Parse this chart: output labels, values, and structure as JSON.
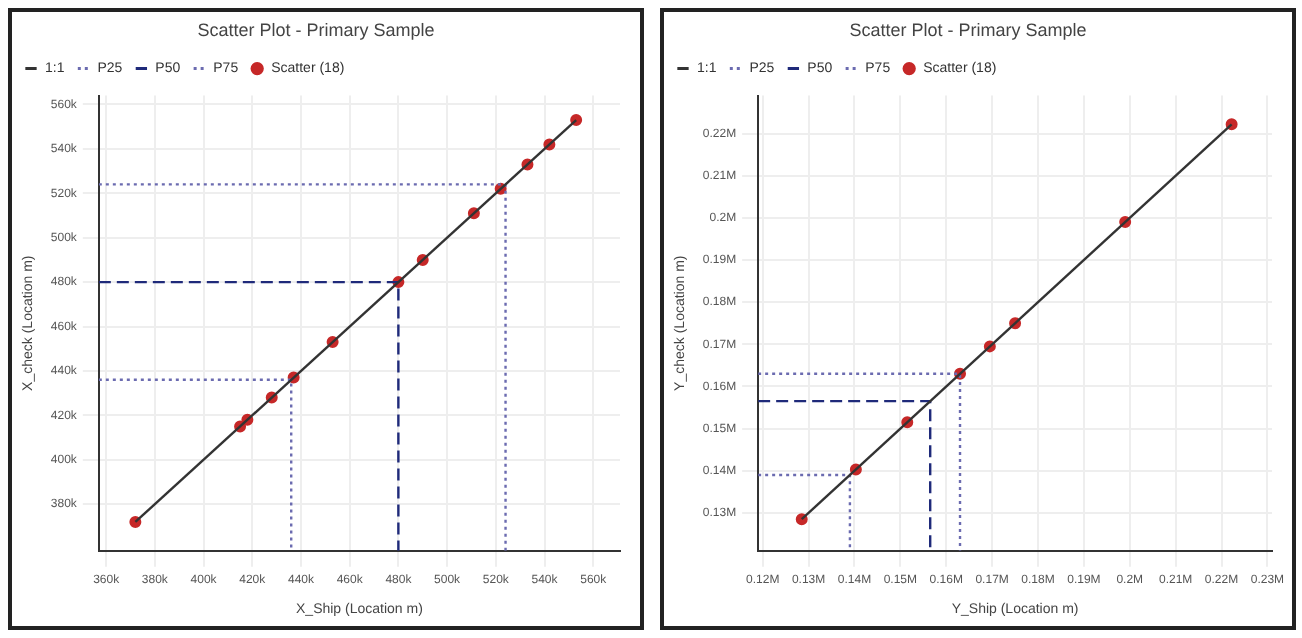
{
  "chart_data": [
    {
      "type": "scatter",
      "title": "Scatter Plot - Primary Sample",
      "xlabel": "X_Ship (Location m)",
      "ylabel": "X_check (Location m)",
      "legend": "top left",
      "grid": true,
      "xlim": [
        357000,
        571000
      ],
      "ylim": [
        359000,
        564000
      ],
      "xticks": [
        {
          "value": 360000,
          "label": "360k"
        },
        {
          "value": 380000,
          "label": "380k"
        },
        {
          "value": 400000,
          "label": "400k"
        },
        {
          "value": 420000,
          "label": "420k"
        },
        {
          "value": 440000,
          "label": "440k"
        },
        {
          "value": 460000,
          "label": "460k"
        },
        {
          "value": 480000,
          "label": "480k"
        },
        {
          "value": 500000,
          "label": "500k"
        },
        {
          "value": 520000,
          "label": "520k"
        },
        {
          "value": 540000,
          "label": "540k"
        },
        {
          "value": 560000,
          "label": "560k"
        }
      ],
      "yticks": [
        {
          "value": 380000,
          "label": "380k"
        },
        {
          "value": 400000,
          "label": "400k"
        },
        {
          "value": 420000,
          "label": "420k"
        },
        {
          "value": 440000,
          "label": "440k"
        },
        {
          "value": 460000,
          "label": "460k"
        },
        {
          "value": 480000,
          "label": "480k"
        },
        {
          "value": 500000,
          "label": "500k"
        },
        {
          "value": 520000,
          "label": "520k"
        },
        {
          "value": 540000,
          "label": "540k"
        },
        {
          "value": 560000,
          "label": "560k"
        }
      ],
      "series": [
        {
          "name": "1:1",
          "type": "line",
          "line_style": "solid",
          "color": "#333333",
          "x": [
            372000,
            553000
          ],
          "values": [
            372000,
            553000
          ]
        },
        {
          "name": "P25",
          "type": "line",
          "line_style": "dotted",
          "color": "#6b6bb0",
          "x": [
            357000,
            436000,
            436000
          ],
          "values": [
            436000,
            436000,
            359000
          ]
        },
        {
          "name": "P50",
          "type": "line",
          "line_style": "dashed",
          "color": "#1f2a7a",
          "x": [
            357000,
            480000,
            480000
          ],
          "values": [
            480000,
            480000,
            359000
          ]
        },
        {
          "name": "P75",
          "type": "line",
          "line_style": "dotted",
          "color": "#6b6bb0",
          "x": [
            357000,
            524000,
            524000
          ],
          "values": [
            524000,
            524000,
            359000
          ]
        },
        {
          "name": "Scatter (18)",
          "type": "scatter",
          "marker": "circle",
          "color": "#c62828",
          "x": [
            372000,
            415000,
            418000,
            428000,
            437000,
            453000,
            480000,
            490000,
            511000,
            522000,
            533000,
            542000,
            553000
          ],
          "values": [
            372000,
            415000,
            418000,
            428000,
            437000,
            453000,
            480000,
            490000,
            511000,
            522000,
            533000,
            542000,
            553000
          ]
        }
      ]
    },
    {
      "type": "scatter",
      "title": "Scatter Plot - Primary Sample",
      "xlabel": "Y_Ship (Location m)",
      "ylabel": "Y_check (Location m)",
      "legend": "top left",
      "grid": true,
      "xlim": [
        119000,
        231000
      ],
      "ylim": [
        121000,
        229000
      ],
      "xticks": [
        {
          "value": 120000,
          "label": "0.12M"
        },
        {
          "value": 130000,
          "label": "0.13M"
        },
        {
          "value": 140000,
          "label": "0.14M"
        },
        {
          "value": 150000,
          "label": "0.15M"
        },
        {
          "value": 160000,
          "label": "0.16M"
        },
        {
          "value": 170000,
          "label": "0.17M"
        },
        {
          "value": 180000,
          "label": "0.18M"
        },
        {
          "value": 190000,
          "label": "0.19M"
        },
        {
          "value": 200000,
          "label": "0.2M"
        },
        {
          "value": 210000,
          "label": "0.21M"
        },
        {
          "value": 220000,
          "label": "0.22M"
        },
        {
          "value": 230000,
          "label": "0.23M"
        }
      ],
      "yticks": [
        {
          "value": 130000,
          "label": "0.13M"
        },
        {
          "value": 140000,
          "label": "0.14M"
        },
        {
          "value": 150000,
          "label": "0.15M"
        },
        {
          "value": 160000,
          "label": "0.16M"
        },
        {
          "value": 170000,
          "label": "0.17M"
        },
        {
          "value": 180000,
          "label": "0.18M"
        },
        {
          "value": 190000,
          "label": "0.19M"
        },
        {
          "value": 200000,
          "label": "0.2M"
        },
        {
          "value": 210000,
          "label": "0.21M"
        },
        {
          "value": 220000,
          "label": "0.22M"
        }
      ],
      "series": [
        {
          "name": "1:1",
          "type": "line",
          "line_style": "solid",
          "color": "#333333",
          "x": [
            128500,
            222200
          ],
          "values": [
            128500,
            222200
          ]
        },
        {
          "name": "P25",
          "type": "line",
          "line_style": "dotted",
          "color": "#6b6bb0",
          "x": [
            119000,
            139000,
            139000
          ],
          "values": [
            139000,
            139000,
            121000
          ]
        },
        {
          "name": "P50",
          "type": "line",
          "line_style": "dashed",
          "color": "#1f2a7a",
          "x": [
            119000,
            156500,
            156500
          ],
          "values": [
            156500,
            156500,
            121000
          ]
        },
        {
          "name": "P75",
          "type": "line",
          "line_style": "dotted",
          "color": "#6b6bb0",
          "x": [
            119000,
            163000,
            163000
          ],
          "values": [
            163000,
            163000,
            121000
          ]
        },
        {
          "name": "Scatter (18)",
          "type": "scatter",
          "marker": "circle",
          "color": "#c62828",
          "x": [
            128500,
            139500,
            140300,
            151500,
            163000,
            169500,
            175000,
            199000,
            222200
          ],
          "values": [
            128500,
            null,
            140300,
            151500,
            163000,
            169500,
            175000,
            199000,
            222200
          ]
        }
      ]
    }
  ]
}
